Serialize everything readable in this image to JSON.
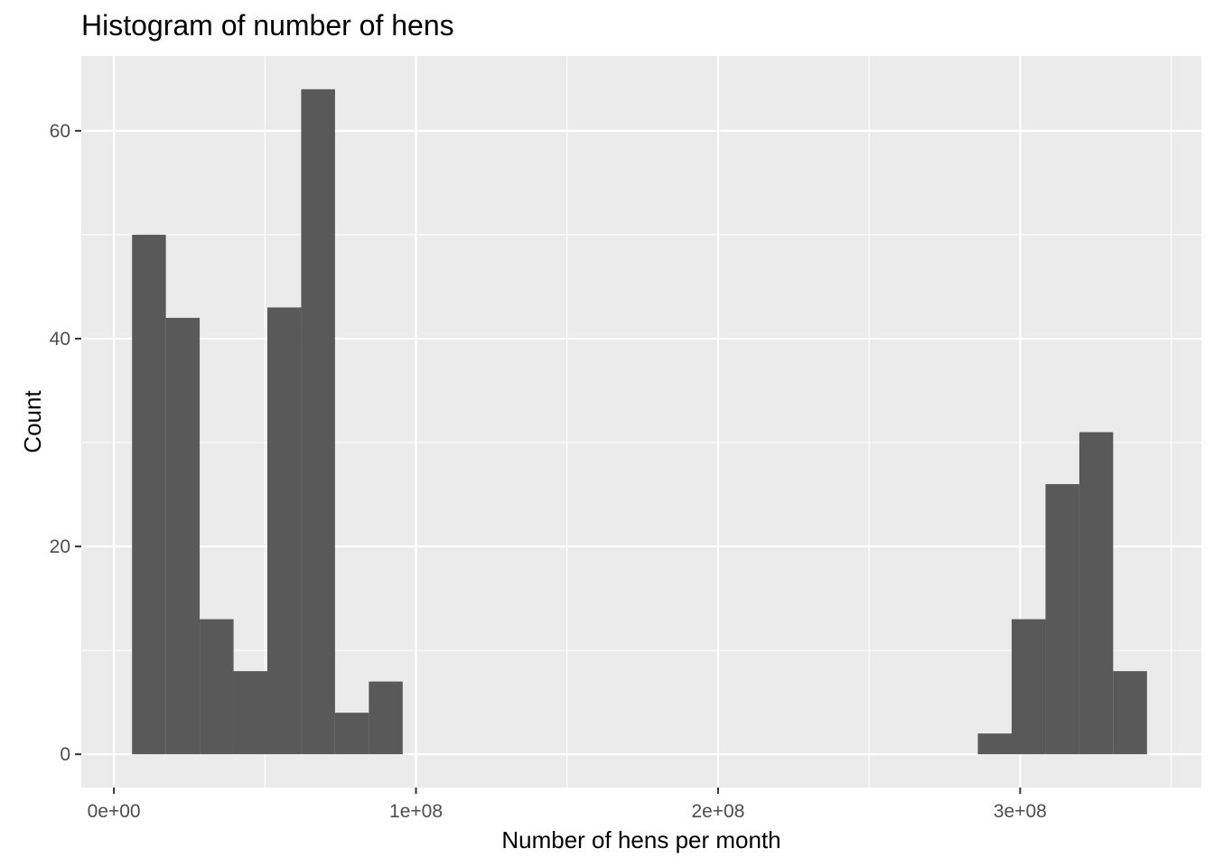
{
  "chart_data": {
    "type": "histogram",
    "title": "Histogram of number of hens",
    "xlabel": "Number of hens per month",
    "ylabel": "Count",
    "x_ticks": [
      {
        "value": 0,
        "label": "0e+00"
      },
      {
        "value": 100000000,
        "label": "1e+08"
      },
      {
        "value": 200000000,
        "label": "2e+08"
      },
      {
        "value": 300000000,
        "label": "3e+08"
      }
    ],
    "y_ticks": [
      {
        "value": 0,
        "label": "0"
      },
      {
        "value": 20,
        "label": "20"
      },
      {
        "value": 40,
        "label": "40"
      },
      {
        "value": 60,
        "label": "60"
      }
    ],
    "xlim": [
      -10800000,
      360000000
    ],
    "ylim": [
      -3.2,
      67.2
    ],
    "grid": true,
    "bin_width": 11200000,
    "bins": [
      {
        "x0": 6000000,
        "x1": 17200000,
        "count": 50
      },
      {
        "x0": 17200000,
        "x1": 28400000,
        "count": 42
      },
      {
        "x0": 28400000,
        "x1": 39600000,
        "count": 13
      },
      {
        "x0": 39600000,
        "x1": 50800000,
        "count": 8
      },
      {
        "x0": 50800000,
        "x1": 62000000,
        "count": 43
      },
      {
        "x0": 62000000,
        "x1": 73200000,
        "count": 64
      },
      {
        "x0": 73200000,
        "x1": 84400000,
        "count": 4
      },
      {
        "x0": 84400000,
        "x1": 95600000,
        "count": 7
      },
      {
        "x0": 286000000,
        "x1": 297200000,
        "count": 2
      },
      {
        "x0": 297200000,
        "x1": 308400000,
        "count": 13
      },
      {
        "x0": 308400000,
        "x1": 319600000,
        "count": 26
      },
      {
        "x0": 319600000,
        "x1": 330800000,
        "count": 31
      },
      {
        "x0": 330800000,
        "x1": 342000000,
        "count": 8
      }
    ],
    "colors": {
      "bar": "#595959",
      "panel": "#ebebeb",
      "grid": "#ffffff",
      "tick": "#333333"
    }
  }
}
